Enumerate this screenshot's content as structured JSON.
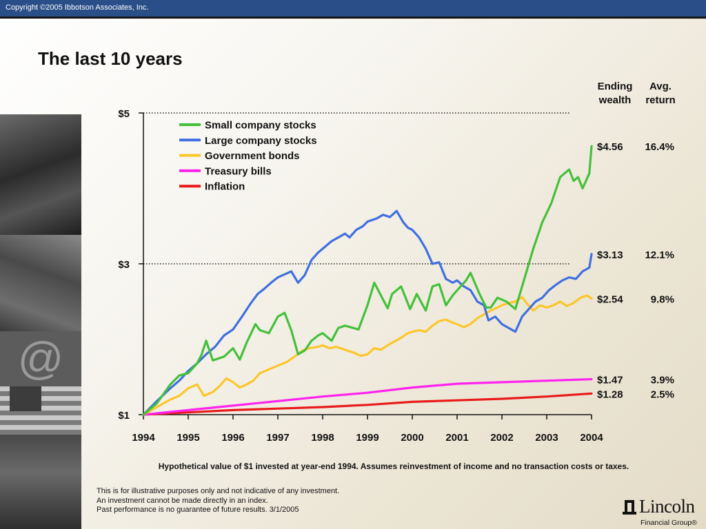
{
  "header": {
    "copyright": "Copyright ©2005 Ibbotson Associates, Inc.",
    "title": "The last 10 years"
  },
  "table_headers": {
    "ending_wealth_line1": "Ending",
    "ending_wealth_line2": "wealth",
    "avg_return_line1": "Avg.",
    "avg_return_line2": "return"
  },
  "footer": {
    "caption": "Hypothetical value of $1 invested at year-end 1994. Assumes reinvestment of income and no transaction costs or taxes.",
    "disclaimer_line1": "This is for illustrative purposes only and not indicative of any investment.",
    "disclaimer_line2": "An investment cannot be made directly in an index.",
    "disclaimer_line3": "Past performance is no guarantee of future results. 3/1/2005",
    "logo_name": "Lincoln",
    "logo_sub": "Financial Group®"
  },
  "colors": {
    "small_company": "#44c03a",
    "large_company": "#3f6fe0",
    "government_bonds": "#fcc62a",
    "treasury_bills": "#ff22ee",
    "inflation": "#e81a1a",
    "banner": "#2a4f88"
  },
  "chart_data": {
    "type": "line",
    "title": "",
    "xlabel": "",
    "ylabel": "",
    "xlim": [
      1994,
      2004
    ],
    "ylim": [
      1,
      5
    ],
    "x_ticks": [
      "1994",
      "1995",
      "1996",
      "1997",
      "1998",
      "1999",
      "2000",
      "2001",
      "2002",
      "2003",
      "2004"
    ],
    "y_ticks": [
      {
        "value": 1,
        "label": "$1"
      },
      {
        "value": 3,
        "label": "$3",
        "dotted_gridline": true
      },
      {
        "value": 5,
        "label": "$5",
        "dotted_gridline": true
      }
    ],
    "legend_position": "top-left",
    "series": [
      {
        "name": "Small company stocks",
        "color_key": "small_company",
        "ending_wealth": "$4.56",
        "avg_return": "16.4%",
        "points": [
          [
            1994,
            1.0
          ],
          [
            1994.3,
            1.15
          ],
          [
            1994.6,
            1.4
          ],
          [
            1994.8,
            1.52
          ],
          [
            1995,
            1.55
          ],
          [
            1995.2,
            1.68
          ],
          [
            1995.3,
            1.8
          ],
          [
            1995.4,
            1.98
          ],
          [
            1995.55,
            1.72
          ],
          [
            1995.8,
            1.77
          ],
          [
            1996,
            1.88
          ],
          [
            1996.15,
            1.73
          ],
          [
            1996.3,
            1.95
          ],
          [
            1996.5,
            2.2
          ],
          [
            1996.6,
            2.12
          ],
          [
            1996.8,
            2.08
          ],
          [
            1997,
            2.3
          ],
          [
            1997.15,
            2.35
          ],
          [
            1997.3,
            2.12
          ],
          [
            1997.45,
            1.8
          ],
          [
            1997.6,
            1.85
          ],
          [
            1997.75,
            1.98
          ],
          [
            1997.9,
            2.05
          ],
          [
            1998,
            2.08
          ],
          [
            1998.2,
            1.98
          ],
          [
            1998.35,
            2.15
          ],
          [
            1998.5,
            2.18
          ],
          [
            1998.8,
            2.13
          ],
          [
            1999,
            2.45
          ],
          [
            1999.15,
            2.75
          ],
          [
            1999.3,
            2.58
          ],
          [
            1999.45,
            2.41
          ],
          [
            1999.55,
            2.6
          ],
          [
            1999.75,
            2.7
          ],
          [
            1999.95,
            2.4
          ],
          [
            2000.1,
            2.6
          ],
          [
            2000.3,
            2.38
          ],
          [
            2000.45,
            2.7
          ],
          [
            2000.6,
            2.73
          ],
          [
            2000.75,
            2.45
          ],
          [
            2000.9,
            2.58
          ],
          [
            2001.05,
            2.68
          ],
          [
            2001.2,
            2.78
          ],
          [
            2001.3,
            2.88
          ],
          [
            2001.5,
            2.6
          ],
          [
            2001.65,
            2.42
          ],
          [
            2001.75,
            2.42
          ],
          [
            2001.9,
            2.55
          ],
          [
            2002.1,
            2.5
          ],
          [
            2002.3,
            2.4
          ],
          [
            2002.5,
            2.8
          ],
          [
            2002.7,
            3.2
          ],
          [
            2002.9,
            3.55
          ],
          [
            2003.1,
            3.8
          ],
          [
            2003.3,
            4.15
          ],
          [
            2003.5,
            4.25
          ],
          [
            2003.6,
            4.1
          ],
          [
            2003.7,
            4.15
          ],
          [
            2003.8,
            4.0
          ],
          [
            2003.95,
            4.2
          ],
          [
            2004,
            4.56
          ]
        ]
      },
      {
        "name": "Large company stocks",
        "color_key": "large_company",
        "ending_wealth": "$3.13",
        "avg_return": "12.1%",
        "points": [
          [
            1994,
            1.0
          ],
          [
            1994.3,
            1.18
          ],
          [
            1994.6,
            1.35
          ],
          [
            1994.8,
            1.45
          ],
          [
            1995,
            1.58
          ],
          [
            1995.2,
            1.68
          ],
          [
            1995.4,
            1.8
          ],
          [
            1995.6,
            1.9
          ],
          [
            1995.8,
            2.05
          ],
          [
            1996,
            2.13
          ],
          [
            1996.2,
            2.3
          ],
          [
            1996.4,
            2.48
          ],
          [
            1996.55,
            2.6
          ],
          [
            1996.7,
            2.67
          ],
          [
            1996.85,
            2.75
          ],
          [
            1997,
            2.82
          ],
          [
            1997.15,
            2.86
          ],
          [
            1997.3,
            2.9
          ],
          [
            1997.45,
            2.75
          ],
          [
            1997.6,
            2.85
          ],
          [
            1997.75,
            3.05
          ],
          [
            1997.9,
            3.15
          ],
          [
            1998,
            3.2
          ],
          [
            1998.2,
            3.3
          ],
          [
            1998.35,
            3.35
          ],
          [
            1998.5,
            3.4
          ],
          [
            1998.6,
            3.35
          ],
          [
            1998.75,
            3.45
          ],
          [
            1998.9,
            3.5
          ],
          [
            1999,
            3.56
          ],
          [
            1999.2,
            3.6
          ],
          [
            1999.35,
            3.65
          ],
          [
            1999.5,
            3.62
          ],
          [
            1999.65,
            3.7
          ],
          [
            1999.8,
            3.55
          ],
          [
            1999.9,
            3.48
          ],
          [
            2000,
            3.45
          ],
          [
            2000.15,
            3.35
          ],
          [
            2000.3,
            3.2
          ],
          [
            2000.45,
            3.0
          ],
          [
            2000.6,
            3.02
          ],
          [
            2000.75,
            2.8
          ],
          [
            2000.9,
            2.75
          ],
          [
            2001,
            2.78
          ],
          [
            2001.15,
            2.7
          ],
          [
            2001.3,
            2.65
          ],
          [
            2001.45,
            2.5
          ],
          [
            2001.6,
            2.45
          ],
          [
            2001.7,
            2.25
          ],
          [
            2001.85,
            2.3
          ],
          [
            2002,
            2.2
          ],
          [
            2002.15,
            2.15
          ],
          [
            2002.3,
            2.1
          ],
          [
            2002.45,
            2.3
          ],
          [
            2002.6,
            2.4
          ],
          [
            2002.75,
            2.5
          ],
          [
            2002.9,
            2.55
          ],
          [
            2003.05,
            2.65
          ],
          [
            2003.2,
            2.72
          ],
          [
            2003.35,
            2.78
          ],
          [
            2003.5,
            2.82
          ],
          [
            2003.65,
            2.8
          ],
          [
            2003.8,
            2.9
          ],
          [
            2003.95,
            2.95
          ],
          [
            2004,
            3.13
          ]
        ]
      },
      {
        "name": "Government bonds",
        "color_key": "government_bonds",
        "ending_wealth": "$2.54",
        "avg_return": "9.8%",
        "points": [
          [
            1994,
            1.0
          ],
          [
            1994.3,
            1.1
          ],
          [
            1994.6,
            1.2
          ],
          [
            1994.8,
            1.25
          ],
          [
            1995,
            1.35
          ],
          [
            1995.2,
            1.4
          ],
          [
            1995.35,
            1.25
          ],
          [
            1995.55,
            1.3
          ],
          [
            1995.7,
            1.38
          ],
          [
            1995.85,
            1.48
          ],
          [
            1996,
            1.43
          ],
          [
            1996.15,
            1.36
          ],
          [
            1996.3,
            1.4
          ],
          [
            1996.45,
            1.45
          ],
          [
            1996.6,
            1.55
          ],
          [
            1996.8,
            1.6
          ],
          [
            1997,
            1.65
          ],
          [
            1997.2,
            1.7
          ],
          [
            1997.4,
            1.78
          ],
          [
            1997.55,
            1.85
          ],
          [
            1997.7,
            1.88
          ],
          [
            1997.9,
            1.9
          ],
          [
            1998,
            1.92
          ],
          [
            1998.15,
            1.88
          ],
          [
            1998.3,
            1.9
          ],
          [
            1998.5,
            1.86
          ],
          [
            1998.7,
            1.82
          ],
          [
            1998.85,
            1.78
          ],
          [
            1999,
            1.8
          ],
          [
            1999.15,
            1.88
          ],
          [
            1999.3,
            1.86
          ],
          [
            1999.45,
            1.92
          ],
          [
            1999.6,
            1.97
          ],
          [
            1999.75,
            2.02
          ],
          [
            1999.9,
            2.08
          ],
          [
            2000,
            2.1
          ],
          [
            2000.15,
            2.12
          ],
          [
            2000.3,
            2.1
          ],
          [
            2000.45,
            2.18
          ],
          [
            2000.6,
            2.24
          ],
          [
            2000.75,
            2.26
          ],
          [
            2000.9,
            2.22
          ],
          [
            2001,
            2.2
          ],
          [
            2001.15,
            2.16
          ],
          [
            2001.3,
            2.2
          ],
          [
            2001.45,
            2.28
          ],
          [
            2001.6,
            2.33
          ],
          [
            2001.75,
            2.38
          ],
          [
            2001.9,
            2.42
          ],
          [
            2002,
            2.45
          ],
          [
            2002.15,
            2.48
          ],
          [
            2002.3,
            2.5
          ],
          [
            2002.45,
            2.56
          ],
          [
            2002.55,
            2.48
          ],
          [
            2002.7,
            2.38
          ],
          [
            2002.85,
            2.45
          ],
          [
            2003,
            2.42
          ],
          [
            2003.15,
            2.45
          ],
          [
            2003.3,
            2.5
          ],
          [
            2003.45,
            2.44
          ],
          [
            2003.6,
            2.48
          ],
          [
            2003.75,
            2.55
          ],
          [
            2003.9,
            2.58
          ],
          [
            2004,
            2.54
          ]
        ]
      },
      {
        "name": "Treasury bills",
        "color_key": "treasury_bills",
        "ending_wealth": "$1.47",
        "avg_return": "3.9%",
        "points": [
          [
            1994,
            1.0
          ],
          [
            1995,
            1.06
          ],
          [
            1996,
            1.12
          ],
          [
            1997,
            1.18
          ],
          [
            1998,
            1.24
          ],
          [
            1999,
            1.29
          ],
          [
            2000,
            1.36
          ],
          [
            2001,
            1.41
          ],
          [
            2002,
            1.43
          ],
          [
            2003,
            1.45
          ],
          [
            2004,
            1.47
          ]
        ]
      },
      {
        "name": "Inflation",
        "color_key": "inflation",
        "ending_wealth": "$1.28",
        "avg_return": "2.5%",
        "points": [
          [
            1994,
            1.0
          ],
          [
            1995,
            1.03
          ],
          [
            1996,
            1.06
          ],
          [
            1997,
            1.08
          ],
          [
            1998,
            1.1
          ],
          [
            1999,
            1.13
          ],
          [
            2000,
            1.17
          ],
          [
            2001,
            1.19
          ],
          [
            2002,
            1.21
          ],
          [
            2003,
            1.24
          ],
          [
            2004,
            1.28
          ]
        ]
      }
    ]
  }
}
